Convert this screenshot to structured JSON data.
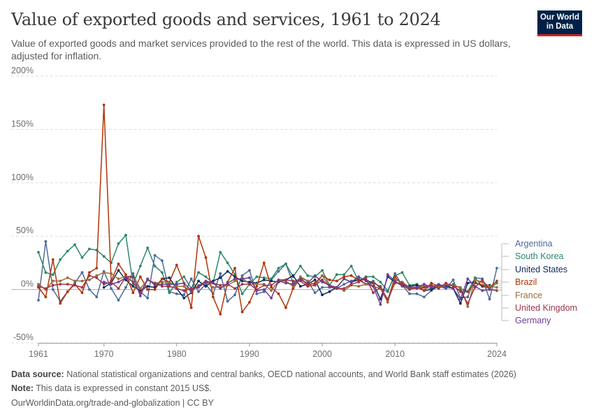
{
  "header": {
    "title": "Value of exported goods and services, 1961 to 2024",
    "subtitle": "Value of exported goods and market services provided to the rest of the world. This data is expressed in US dollars, adjusted for inflation.",
    "logo_line1": "Our World",
    "logo_line2": "in Data"
  },
  "footer": {
    "source_label": "Data source:",
    "source_text": "National statistical organizations and central banks, OECD national accounts, and World Bank staff estimates (2026)",
    "note_label": "Note:",
    "note_text": "This data is expressed in constant 2015 US$.",
    "link": "OurWorldinData.org/trade-and-globalization | CC BY"
  },
  "chart_data": {
    "type": "line",
    "title": "Value of exported goods and services, 1961 to 2024",
    "xlabel": "",
    "ylabel": "",
    "xlim": [
      1961,
      2024
    ],
    "ylim": [
      -50,
      200
    ],
    "y_ticks": [
      -50,
      0,
      50,
      100,
      150,
      200
    ],
    "y_tick_labels": [
      "-50%",
      "0%",
      "50%",
      "100%",
      "150%",
      "200%"
    ],
    "x_ticks": [
      1961,
      1970,
      1980,
      1990,
      2000,
      2010,
      2024
    ],
    "grid": true,
    "legend": "right",
    "series": [
      {
        "name": "Argentina",
        "color": "#4c6a9c",
        "start": 1961,
        "values": [
          -10,
          45,
          0,
          -11,
          -2,
          6,
          16,
          0,
          -7,
          17,
          1,
          -10,
          2,
          15,
          -2,
          -8,
          32,
          27,
          -2,
          -4,
          -5,
          10,
          -2,
          5,
          -4,
          15,
          -11,
          -5,
          13,
          18,
          -4,
          -2,
          9,
          17,
          24,
          6,
          11,
          8,
          -3,
          2,
          2,
          1,
          5,
          8,
          10,
          5,
          8,
          1,
          -2,
          15,
          4,
          -4,
          -4,
          -7,
          -1,
          3,
          1,
          9,
          -8,
          -7,
          11,
          10,
          -9,
          20
        ]
      },
      {
        "name": "South Korea",
        "color": "#2d8867",
        "start": 1961,
        "values": [
          35,
          16,
          14,
          28,
          36,
          42,
          30,
          38,
          37,
          31,
          25,
          43,
          51,
          5,
          22,
          39,
          22,
          16,
          -3,
          7,
          12,
          1,
          16,
          12,
          6,
          35,
          25,
          14,
          -4,
          5,
          12,
          11,
          10,
          20,
          24,
          12,
          22,
          13,
          12,
          18,
          4,
          14,
          14,
          22,
          8,
          12,
          12,
          7,
          -1,
          13,
          16,
          4,
          5,
          2,
          1,
          3,
          2,
          5,
          1,
          -2,
          11,
          3,
          1,
          6
        ]
      },
      {
        "name": "United States",
        "color": "#0e2a5c",
        "start": 1970,
        "values": [
          2,
          6,
          18,
          9,
          3,
          -1,
          3,
          2,
          10,
          11,
          1,
          -8,
          -3,
          8,
          3,
          8,
          11,
          17,
          12,
          8,
          7,
          6,
          9,
          8,
          7,
          9,
          13,
          3,
          5,
          9,
          -5,
          -2,
          2,
          10,
          7,
          9,
          9,
          6,
          -9,
          12,
          7,
          4,
          3,
          4,
          -1,
          0,
          4,
          4,
          1,
          -13,
          6,
          7,
          3,
          4
        ]
      },
      {
        "name": "Brazil",
        "color": "#b13507",
        "start": 1961,
        "values": [
          2,
          -7,
          28,
          -13,
          -2,
          5,
          -3,
          16,
          20,
          173,
          8,
          24,
          14,
          -3,
          12,
          0,
          0,
          10,
          7,
          23,
          6,
          -17,
          50,
          30,
          -7,
          -23,
          7,
          20,
          -21,
          -12,
          3,
          25,
          2,
          -4,
          -17,
          1,
          11,
          4,
          6,
          13,
          9,
          8,
          12,
          13,
          9,
          5,
          6,
          3,
          -10,
          12,
          4,
          0,
          2,
          -1,
          6,
          3,
          5,
          4,
          -2,
          -2,
          6,
          4,
          2,
          8
        ]
      },
      {
        "name": "France",
        "color": "#996d39",
        "start": 1961,
        "values": [
          5,
          0,
          8,
          8,
          11,
          8,
          8,
          9,
          13,
          16,
          15,
          10,
          12,
          13,
          1,
          9,
          6,
          7,
          7,
          3,
          3,
          -2,
          4,
          7,
          2,
          2,
          4,
          8,
          11,
          5,
          5,
          5,
          -1,
          8,
          8,
          3,
          12,
          8,
          4,
          13,
          3,
          2,
          -1,
          4,
          3,
          5,
          3,
          1,
          -12,
          9,
          7,
          2,
          2,
          3,
          4,
          2,
          5,
          4,
          2,
          -16,
          9,
          7,
          3,
          2
        ]
      },
      {
        "name": "United Kingdom",
        "color": "#a2334a",
        "start": 1961,
        "values": [
          3,
          1,
          4,
          5,
          5,
          4,
          2,
          13,
          11,
          5,
          7,
          1,
          12,
          7,
          -3,
          9,
          6,
          3,
          3,
          1,
          -1,
          1,
          2,
          7,
          6,
          4,
          5,
          1,
          5,
          5,
          0,
          4,
          4,
          9,
          9,
          8,
          8,
          3,
          4,
          9,
          3,
          1,
          1,
          5,
          7,
          11,
          -3,
          2,
          -9,
          6,
          6,
          1,
          1,
          2,
          4,
          1,
          6,
          3,
          -1,
          -13,
          2,
          9,
          0,
          -1
        ]
      },
      {
        "name": "Germany",
        "color": "#6d3e91",
        "start": 1970,
        "values": [
          7,
          5,
          7,
          11,
          12,
          -6,
          10,
          4,
          5,
          5,
          5,
          6,
          -1,
          3,
          8,
          6,
          1,
          6,
          10,
          10,
          11,
          -1,
          0,
          -8,
          8,
          6,
          5,
          9,
          6,
          13,
          7,
          4,
          2,
          10,
          7,
          12,
          8,
          3,
          -14,
          14,
          8,
          3,
          2,
          2,
          5,
          2,
          5,
          2,
          1,
          -9,
          10,
          3,
          -1,
          0
        ]
      }
    ]
  }
}
